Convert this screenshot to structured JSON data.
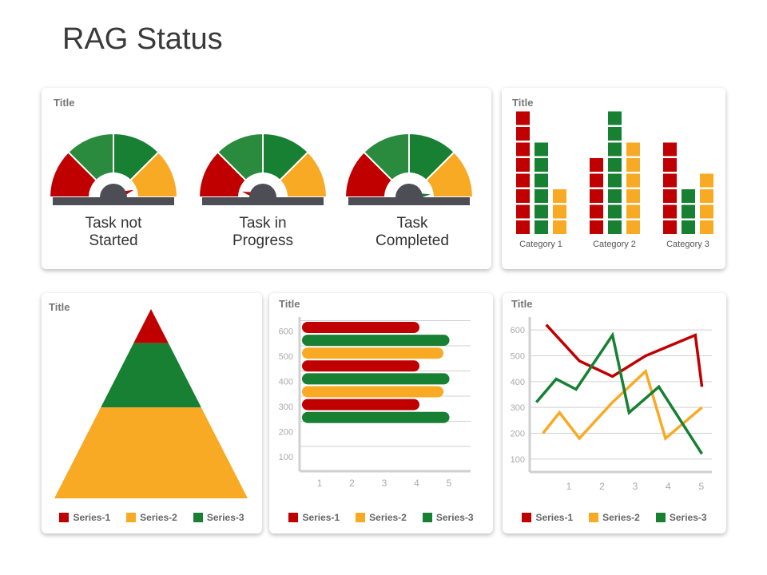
{
  "page": {
    "title": "RAG Status"
  },
  "colors": {
    "red": "#c00000",
    "green": "#178033",
    "amber": "#f9aa25",
    "dark_green": "#2a8a3e",
    "hub": "#4d4d55",
    "grid": "#d0d0d0",
    "axis_text": "#aaaaaa"
  },
  "gauges": {
    "card_title": "Title",
    "items": [
      {
        "label_line1": "Task not",
        "label_line2": "Started",
        "needle": "red"
      },
      {
        "label_line1": "Task in",
        "label_line2": "Progress",
        "needle": "red"
      },
      {
        "label_line1": "Task",
        "label_line2": "Completed",
        "needle": "green"
      }
    ]
  },
  "legend": [
    "Series-1",
    "Series-2",
    "Series-3"
  ],
  "chart_data": [
    {
      "type": "bar",
      "title": "Title",
      "style": "stacked-blocks",
      "categories": [
        "Category 1",
        "Category 2",
        "Category 3"
      ],
      "series": [
        {
          "color": "red",
          "values": [
            8,
            5,
            6
          ]
        },
        {
          "color": "green",
          "values": [
            6,
            8,
            3
          ]
        },
        {
          "color": "amber",
          "values": [
            3,
            6,
            4
          ]
        }
      ]
    },
    {
      "type": "area",
      "title": "Title",
      "style": "pyramid",
      "layers": [
        {
          "series": "Series-1",
          "color": "red",
          "share": 0.18
        },
        {
          "series": "Series-3",
          "color": "green",
          "share": 0.34
        },
        {
          "series": "Series-2",
          "color": "amber",
          "share": 0.48
        }
      ],
      "legend": [
        "Series-1",
        "Series-2",
        "Series-3"
      ]
    },
    {
      "type": "bar",
      "title": "Title",
      "orientation": "horizontal",
      "x_ticks": [
        "1",
        "2",
        "3",
        "4",
        "5"
      ],
      "y_ticks": [
        "100",
        "200",
        "300",
        "400",
        "500",
        "600"
      ],
      "xlim": [
        0,
        5.5
      ],
      "bars": [
        {
          "color": "red",
          "value": 4
        },
        {
          "color": "green",
          "value": 5
        },
        {
          "color": "amber",
          "value": 4.8
        },
        {
          "color": "red",
          "value": 4
        },
        {
          "color": "green",
          "value": 5
        },
        {
          "color": "amber",
          "value": 4.8
        },
        {
          "color": "red",
          "value": 4
        },
        {
          "color": "green",
          "value": 5
        }
      ],
      "legend": [
        "Series-1",
        "Series-2",
        "Series-3"
      ]
    },
    {
      "type": "line",
      "title": "Title",
      "x_ticks": [
        "1",
        "2",
        "3",
        "4",
        "5"
      ],
      "y_ticks": [
        "100",
        "200",
        "300",
        "400",
        "500",
        "600"
      ],
      "xlim": [
        0.3,
        5.8
      ],
      "ylim": [
        50,
        650
      ],
      "series": [
        {
          "name": "Series-1",
          "color": "red",
          "x": [
            0.8,
            1.8,
            2.8,
            3.8,
            5.3,
            5.5
          ],
          "y": [
            620,
            480,
            420,
            500,
            580,
            380
          ]
        },
        {
          "name": "Series-2",
          "color": "amber",
          "x": [
            0.7,
            1.2,
            1.8,
            2.8,
            3.8,
            4.4,
            5.5
          ],
          "y": [
            200,
            280,
            180,
            320,
            440,
            180,
            300
          ]
        },
        {
          "name": "Series-3",
          "color": "green",
          "x": [
            0.5,
            1.1,
            1.7,
            2.8,
            3.3,
            4.2,
            5.5
          ],
          "y": [
            320,
            410,
            370,
            580,
            280,
            380,
            120
          ]
        }
      ],
      "legend": [
        "Series-1",
        "Series-2",
        "Series-3"
      ]
    }
  ]
}
